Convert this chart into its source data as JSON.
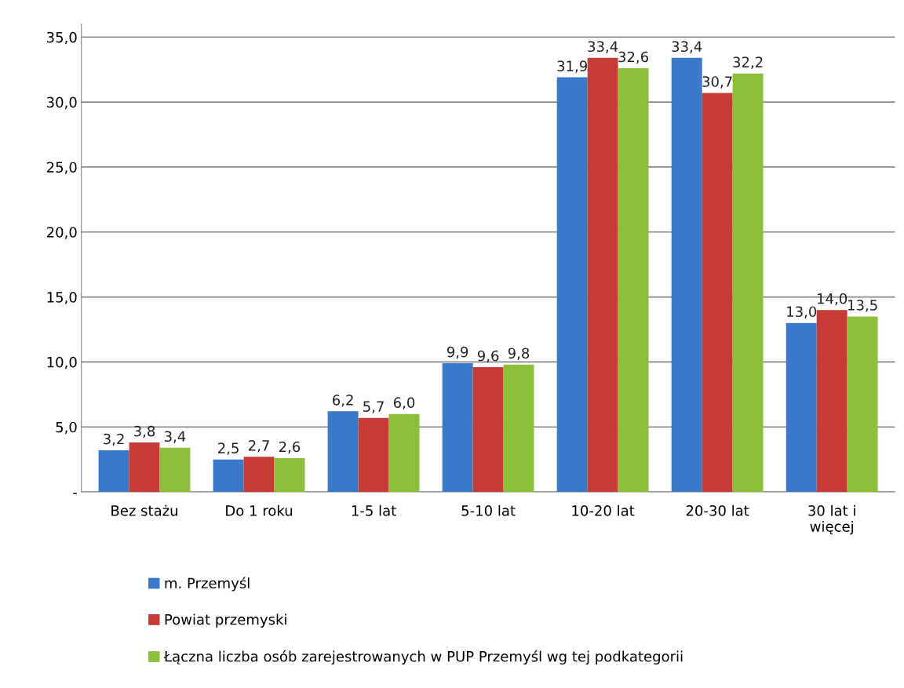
{
  "chart_data": {
    "type": "bar",
    "categories": [
      "Bez stażu",
      "Do 1 roku",
      "1-5 lat",
      "5-10 lat",
      "10-20 lat",
      "20-30 lat",
      "30 lat i\nwięcej"
    ],
    "series": [
      {
        "name": "m. Przemyśl",
        "color": "#3a78c9",
        "values": [
          3.2,
          2.5,
          6.2,
          9.9,
          31.9,
          33.4,
          13.0
        ],
        "value_labels": [
          "3,2",
          "2,5",
          "6,2",
          "9,9",
          "31,9",
          "33,4",
          "13,0"
        ]
      },
      {
        "name": "Powiat przemyski",
        "color": "#c83a36",
        "values": [
          3.8,
          2.7,
          5.7,
          9.6,
          33.4,
          30.7,
          14.0
        ],
        "value_labels": [
          "3,8",
          "2,7",
          "5,7",
          "9,6",
          "33,4",
          "30,7",
          "14,0"
        ]
      },
      {
        "name": "Łączna liczba osób zarejestrowanych w PUP Przemyśl wg tej podkategorii",
        "color": "#8cbf3a",
        "values": [
          3.4,
          2.6,
          6.0,
          9.8,
          32.6,
          32.2,
          13.5
        ],
        "value_labels": [
          "3,4",
          "2,6",
          "6,0",
          "9,8",
          "32,6",
          "32,2",
          "13,5"
        ]
      }
    ],
    "ylim": [
      0,
      36
    ],
    "yticks": [
      {
        "value": 0,
        "label": "-"
      },
      {
        "value": 5,
        "label": "5,0"
      },
      {
        "value": 10,
        "label": "10,0"
      },
      {
        "value": 15,
        "label": "15,0"
      },
      {
        "value": 20,
        "label": "20,0"
      },
      {
        "value": 25,
        "label": "25,0"
      },
      {
        "value": 30,
        "label": "30,0"
      },
      {
        "value": 35,
        "label": "35,0"
      }
    ],
    "grid": "y",
    "legend": "bottom"
  }
}
